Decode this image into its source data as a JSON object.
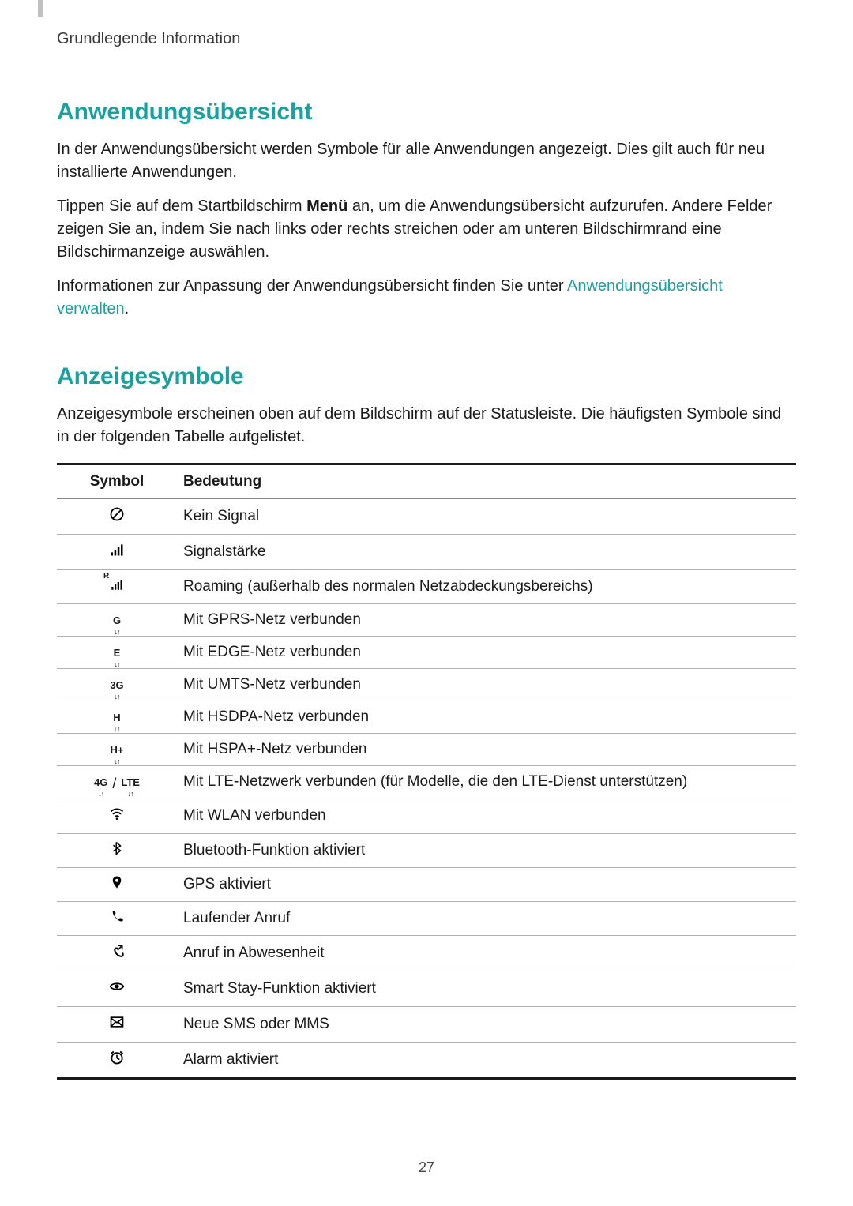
{
  "breadcrumb": "Grundlegende Information",
  "section1": {
    "title": "Anwendungsübersicht",
    "p1": "In der Anwendungsübersicht werden Symbole für alle Anwendungen angezeigt. Dies gilt auch für neu installierte Anwendungen.",
    "p2_a": "Tippen Sie auf dem Startbildschirm ",
    "p2_bold": "Menü",
    "p2_b": " an, um die Anwendungsübersicht aufzurufen. Andere Felder zeigen Sie an, indem Sie nach links oder rechts streichen oder am unteren Bildschirmrand eine Bildschirmanzeige auswählen.",
    "p3_a": "Informationen zur Anpassung der Anwendungsübersicht finden Sie unter ",
    "p3_link": "Anwendungsübersicht verwalten",
    "p3_b": "."
  },
  "section2": {
    "title": "Anzeigesymbole",
    "intro": "Anzeigesymbole erscheinen oben auf dem Bildschirm auf der Statusleiste. Die häufigsten Symbole sind in der folgenden Tabelle aufgelistet."
  },
  "table": {
    "col_symbol": "Symbol",
    "col_meaning": "Bedeutung",
    "rows": [
      {
        "icon": "nosignal",
        "label": "",
        "meaning": "Kein Signal"
      },
      {
        "icon": "signal",
        "label": "",
        "meaning": "Signalstärke"
      },
      {
        "icon": "roaming",
        "label": "R",
        "meaning": "Roaming (außerhalb des normalen Netzabdeckungsbereichs)"
      },
      {
        "icon": "net",
        "label": "G",
        "meaning": "Mit GPRS-Netz verbunden"
      },
      {
        "icon": "net",
        "label": "E",
        "meaning": "Mit EDGE-Netz verbunden"
      },
      {
        "icon": "net",
        "label": "3G",
        "meaning": "Mit UMTS-Netz verbunden"
      },
      {
        "icon": "net",
        "label": "H",
        "meaning": "Mit HSDPA-Netz verbunden"
      },
      {
        "icon": "net",
        "label": "H+",
        "meaning": "Mit HSPA+-Netz verbunden"
      },
      {
        "icon": "lte",
        "label_a": "4G",
        "label_b": "LTE",
        "meaning": "Mit LTE-Netzwerk verbunden (für Modelle, die den LTE-Dienst unterstützen)"
      },
      {
        "icon": "wifi",
        "label": "",
        "meaning": "Mit WLAN verbunden"
      },
      {
        "icon": "bluetooth",
        "label": "",
        "meaning": "Bluetooth-Funktion aktiviert"
      },
      {
        "icon": "gps",
        "label": "",
        "meaning": "GPS aktiviert"
      },
      {
        "icon": "call",
        "label": "",
        "meaning": "Laufender Anruf"
      },
      {
        "icon": "missed",
        "label": "",
        "meaning": "Anruf in Abwesenheit"
      },
      {
        "icon": "eye",
        "label": "",
        "meaning": "Smart Stay-Funktion aktiviert"
      },
      {
        "icon": "sms",
        "label": "",
        "meaning": "Neue SMS oder MMS"
      },
      {
        "icon": "alarm",
        "label": "",
        "meaning": "Alarm aktiviert"
      }
    ]
  },
  "page_number": "27",
  "colors": {
    "accent": "#1aa0a0",
    "text": "#1a1a1a",
    "rule_heavy": "#1a1a1a",
    "rule_light": "#b0b0b0"
  }
}
